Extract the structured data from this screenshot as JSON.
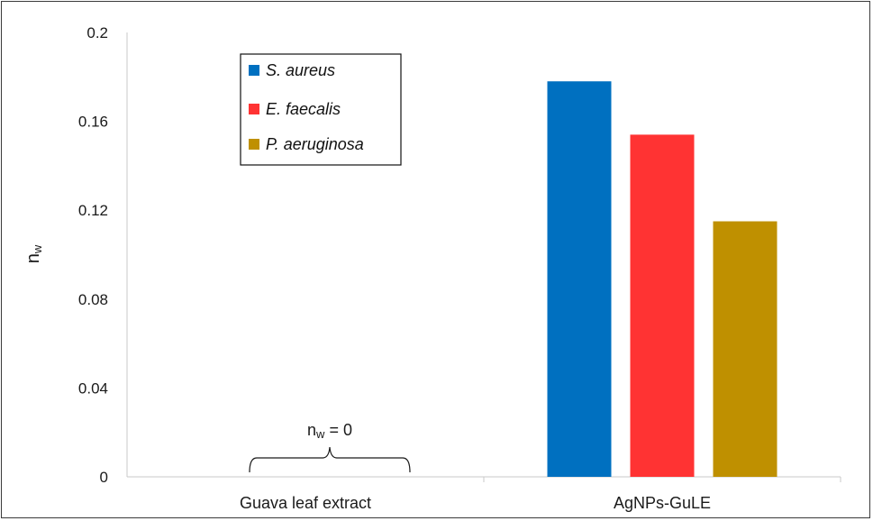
{
  "chart_data": {
    "type": "bar",
    "categories": [
      "Guava leaf extract",
      "AgNPs-GuLE"
    ],
    "series": [
      {
        "name": "S. aureus",
        "color": "#0070c0",
        "values": [
          0,
          0.178
        ]
      },
      {
        "name": "E. faecalis",
        "color": "#ff3333",
        "values": [
          0,
          0.154
        ]
      },
      {
        "name": "P. aeruginosa",
        "color": "#bf9000",
        "values": [
          0,
          0.115
        ]
      }
    ],
    "ylabel_main": "n",
    "ylabel_sub": "w",
    "ylim": [
      0,
      0.2
    ],
    "yticks": [
      "0",
      "0.04",
      "0.08",
      "0.12",
      "0.16",
      "0.2"
    ],
    "yticks_values": [
      0,
      0.04,
      0.08,
      0.12,
      0.16,
      0.2
    ],
    "annotation": {
      "main": "n",
      "sub": "w",
      "rest": " = 0"
    },
    "legend_position": "top-left",
    "grid": false
  }
}
